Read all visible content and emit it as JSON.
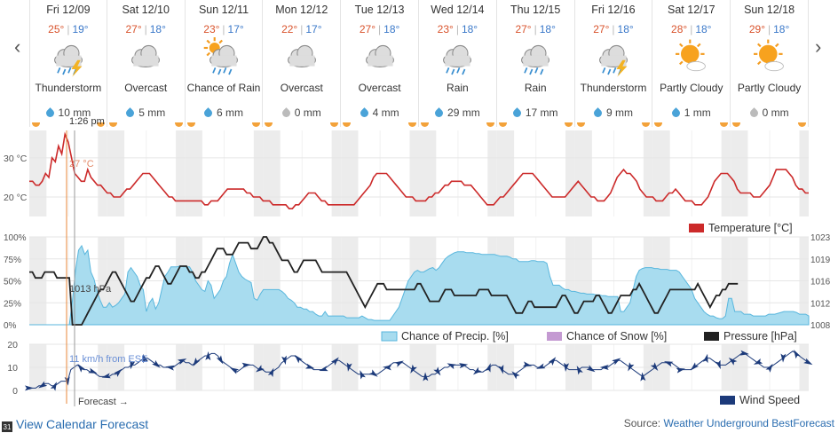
{
  "nav": {
    "prev": "‹",
    "next": "›"
  },
  "days": [
    {
      "name": "Fri 12/09",
      "hi": "25°",
      "lo": "19°",
      "condition": "Thunderstorm",
      "icon": "thunderstorm-icon",
      "precip": "10 mm",
      "drop": "blue"
    },
    {
      "name": "Sat 12/10",
      "hi": "27°",
      "lo": "18°",
      "condition": "Overcast",
      "icon": "overcast-icon",
      "precip": "5 mm",
      "drop": "blue"
    },
    {
      "name": "Sun 12/11",
      "hi": "23°",
      "lo": "17°",
      "condition": "Chance of Rain",
      "icon": "chance-of-rain-icon",
      "precip": "6 mm",
      "drop": "blue"
    },
    {
      "name": "Mon 12/12",
      "hi": "22°",
      "lo": "17°",
      "condition": "Overcast",
      "icon": "overcast-icon",
      "precip": "0 mm",
      "drop": "gray"
    },
    {
      "name": "Tue 12/13",
      "hi": "27°",
      "lo": "18°",
      "condition": "Overcast",
      "icon": "overcast-icon",
      "precip": "4 mm",
      "drop": "blue"
    },
    {
      "name": "Wed 12/14",
      "hi": "23°",
      "lo": "18°",
      "condition": "Rain",
      "icon": "rain-icon",
      "precip": "29 mm",
      "drop": "blue"
    },
    {
      "name": "Thu 12/15",
      "hi": "27°",
      "lo": "18°",
      "condition": "Rain",
      "icon": "rain-icon",
      "precip": "17 mm",
      "drop": "blue"
    },
    {
      "name": "Fri 12/16",
      "hi": "27°",
      "lo": "18°",
      "condition": "Thunderstorm",
      "icon": "thunderstorm-icon",
      "precip": "9 mm",
      "drop": "blue"
    },
    {
      "name": "Sat 12/17",
      "hi": "28°",
      "lo": "18°",
      "condition": "Partly Cloudy",
      "icon": "partly-cloudy-icon",
      "precip": "1 mm",
      "drop": "blue"
    },
    {
      "name": "Sun 12/18",
      "hi": "29°",
      "lo": "18°",
      "condition": "Partly Cloudy",
      "icon": "partly-cloudy-icon",
      "precip": "0 mm",
      "drop": "gray"
    }
  ],
  "colors": {
    "temperature": "#cc2a2a",
    "precip_fill": "#a8dcef",
    "precip_line": "#58b6dd",
    "snow": "#c49ad2",
    "pressure": "#222222",
    "wind": "#1c3a7a",
    "cursor": "#e8873a",
    "now": "#999999",
    "shade": "#ececec"
  },
  "cursor": {
    "time_label": "1:26 pm",
    "temp_label": "27 °C",
    "pressure_label": "1013 hPa",
    "wind_label": "11 km/h from ESE"
  },
  "forecast_label": "Forecast →",
  "chart_data": [
    {
      "type": "line",
      "yticks": [
        "30 °C",
        "20 °C"
      ],
      "ylim": [
        15,
        37
      ],
      "series": [
        {
          "name": "Temperature [°C]",
          "values": [
            24,
            24,
            23,
            23,
            24,
            26,
            25,
            30,
            29,
            33,
            31,
            36,
            34,
            30,
            26,
            25,
            24,
            24,
            27,
            25,
            24,
            23,
            23,
            22,
            21,
            21,
            20,
            20,
            20,
            21,
            22,
            22,
            23,
            24,
            25,
            26,
            26,
            26,
            25,
            24,
            23,
            22,
            21,
            20,
            20,
            19,
            19,
            19,
            19,
            19,
            19,
            19,
            19,
            19,
            18,
            18,
            19,
            19,
            19,
            20,
            21,
            22,
            22,
            22,
            22,
            22,
            22,
            21,
            21,
            20,
            20,
            20,
            19,
            19,
            19,
            18,
            18,
            18,
            18,
            18,
            17,
            17,
            18,
            18,
            19,
            20,
            21,
            21,
            21,
            20,
            19,
            19,
            18,
            18,
            18,
            18,
            18,
            18,
            18,
            18,
            18,
            19,
            20,
            21,
            22,
            23,
            25,
            26,
            26,
            26,
            26,
            25,
            24,
            23,
            22,
            21,
            20,
            20,
            20,
            19,
            19,
            19,
            19,
            20,
            20,
            21,
            21,
            22,
            23,
            23,
            24,
            24,
            24,
            24,
            23,
            23,
            23,
            22,
            21,
            20,
            19,
            18,
            18,
            18,
            19,
            20,
            20,
            21,
            22,
            23,
            24,
            25,
            26,
            26,
            26,
            26,
            25,
            24,
            23,
            22,
            21,
            20,
            20,
            20,
            20,
            20,
            21,
            22,
            23,
            24,
            23,
            22,
            21,
            20,
            20,
            19,
            19,
            19,
            20,
            21,
            23,
            25,
            26,
            27,
            26,
            26,
            25,
            24,
            22,
            21,
            20,
            20,
            20,
            19,
            19,
            19,
            20,
            21,
            21,
            22,
            21,
            20,
            19,
            19,
            19,
            18,
            18,
            18,
            19,
            20,
            22,
            24,
            25,
            26,
            26,
            26,
            25,
            24,
            22,
            21,
            21,
            21,
            21,
            20,
            20,
            20,
            21,
            22,
            23,
            25,
            27,
            27,
            27,
            27,
            26,
            25,
            23,
            22,
            22,
            21,
            21
          ]
        }
      ]
    },
    {
      "type": "area",
      "yticks_left": [
        "100%",
        "75%",
        "50%",
        "25%",
        "0%"
      ],
      "yticks_right": [
        "1023",
        "1019",
        "1016",
        "1012",
        "1008"
      ],
      "ylim_left": [
        0,
        100
      ],
      "ylim_right": [
        1008,
        1023
      ],
      "series": [
        {
          "name": "Chance of Precip. [%]",
          "values": [
            0,
            0,
            0,
            0,
            0,
            0,
            0,
            0,
            0,
            0,
            0,
            0,
            0,
            0,
            28,
            62,
            85,
            90,
            80,
            85,
            60,
            52,
            38,
            28,
            20,
            20,
            25,
            20,
            22,
            25,
            30,
            35,
            60,
            65,
            60,
            55,
            45,
            40,
            15,
            25,
            30,
            18,
            25,
            40,
            55,
            60,
            66,
            66,
            66,
            67,
            66,
            66,
            66,
            60,
            50,
            45,
            40,
            38,
            50,
            45,
            30,
            35,
            40,
            50,
            55,
            70,
            80,
            70,
            60,
            55,
            52,
            50,
            48,
            30,
            28,
            35,
            40,
            40,
            40,
            40,
            40,
            40,
            38,
            35,
            30,
            28,
            25,
            20,
            20,
            18,
            18,
            15,
            15,
            12,
            10,
            10,
            15,
            10,
            10,
            10,
            10,
            10,
            10,
            8,
            8,
            8,
            8,
            8,
            10,
            8,
            6,
            6,
            5,
            5,
            5,
            5,
            5,
            5,
            10,
            15,
            20,
            30,
            40,
            50,
            55,
            60,
            62,
            60,
            60,
            62,
            64,
            65,
            62,
            65,
            70,
            75,
            78,
            80,
            82,
            83,
            83,
            83,
            82,
            82,
            82,
            81,
            81,
            80,
            80,
            80,
            80,
            80,
            79,
            78,
            78,
            78,
            77,
            75,
            75,
            72,
            72,
            72,
            72,
            73,
            73,
            72,
            72,
            72,
            70,
            55,
            45,
            45,
            45,
            42,
            40,
            40,
            38,
            38,
            37,
            36,
            36,
            35,
            35,
            35,
            34,
            34,
            33,
            33,
            32,
            32,
            32,
            32,
            15,
            15,
            20,
            25,
            40,
            55,
            62,
            64,
            65,
            65,
            65,
            64,
            64,
            63,
            63,
            63,
            62,
            62,
            62,
            60,
            55,
            50,
            45,
            40,
            30,
            25,
            20,
            15,
            12,
            10,
            10,
            8,
            7,
            7,
            10,
            30,
            30,
            15,
            15,
            15,
            12,
            12,
            12,
            10,
            10,
            10,
            10,
            10,
            12,
            12,
            12,
            13,
            14,
            15,
            15,
            15,
            15,
            14,
            12,
            12,
            12,
            10
          ]
        },
        {
          "name": "Chance of Snow [%]",
          "values": []
        },
        {
          "name": "Pressure [hPa]",
          "values": [
            1017,
            1017,
            1016,
            1016,
            1016,
            1017,
            1017,
            1017,
            1017,
            1016,
            1016,
            1016,
            1016,
            1016,
            1008,
            1008,
            1008,
            1008,
            1009,
            1010,
            1011,
            1012,
            1013,
            1014,
            1014,
            1015,
            1016,
            1017,
            1017,
            1016,
            1015,
            1014,
            1013,
            1012,
            1012,
            1013,
            1014,
            1015,
            1016,
            1016,
            1017,
            1018,
            1018,
            1017,
            1016,
            1015,
            1015,
            1016,
            1017,
            1018,
            1018,
            1018,
            1017,
            1017,
            1016,
            1016,
            1017,
            1017,
            1018,
            1019,
            1020,
            1021,
            1021,
            1021,
            1020,
            1020,
            1020,
            1021,
            1022,
            1022,
            1022,
            1022,
            1021,
            1021,
            1021,
            1022,
            1023,
            1023,
            1022,
            1022,
            1021,
            1020,
            1019,
            1019,
            1019,
            1018,
            1017,
            1017,
            1018,
            1019,
            1019,
            1019,
            1019,
            1019,
            1018,
            1017,
            1017,
            1017,
            1017,
            1017,
            1017,
            1017,
            1017,
            1017,
            1016,
            1015,
            1014,
            1013,
            1012,
            1011,
            1012,
            1013,
            1014,
            1015,
            1015,
            1015,
            1014,
            1014,
            1014,
            1014,
            1014,
            1014,
            1014,
            1014,
            1014,
            1014,
            1015,
            1015,
            1014,
            1013,
            1012,
            1012,
            1012,
            1012,
            1013,
            1014,
            1014,
            1014,
            1013,
            1013,
            1013,
            1013,
            1013,
            1013,
            1013,
            1013,
            1014,
            1014,
            1014,
            1014,
            1013,
            1013,
            1013,
            1013,
            1013,
            1013,
            1012,
            1011,
            1010,
            1010,
            1010,
            1011,
            1012,
            1012,
            1011,
            1011,
            1011,
            1011,
            1011,
            1011,
            1011,
            1011,
            1012,
            1013,
            1013,
            1012,
            1011,
            1010,
            1010,
            1011,
            1012,
            1012,
            1012,
            1012,
            1013,
            1013,
            1012,
            1011,
            1010,
            1010,
            1011,
            1012,
            1013,
            1013,
            1013,
            1013,
            1014,
            1014,
            1015,
            1014,
            1013,
            1012,
            1011,
            1010,
            1010,
            1011,
            1012,
            1013,
            1014,
            1014,
            1014,
            1014,
            1014,
            1014,
            1014,
            1014,
            1014,
            1015,
            1014,
            1013,
            1012,
            1011,
            1012,
            1013,
            1013,
            1014,
            1014,
            1015,
            1015,
            1015,
            1015
          ]
        }
      ]
    },
    {
      "type": "line",
      "yticks": [
        "20",
        "10",
        "0"
      ],
      "ylim": [
        0,
        20
      ],
      "series": [
        {
          "name": "Wind Speed",
          "values": [
            1,
            1,
            1,
            2,
            2,
            3,
            3,
            2,
            2,
            3,
            4,
            4,
            4,
            9,
            10,
            11,
            10,
            9,
            9,
            8,
            8,
            7,
            6,
            6,
            6,
            6,
            7,
            7,
            8,
            9,
            10,
            10,
            11,
            11,
            12,
            13,
            14,
            14,
            13,
            12,
            11,
            11,
            10,
            10,
            10,
            10,
            11,
            12,
            13,
            12,
            12,
            11,
            12,
            13,
            14,
            15,
            15,
            16,
            16,
            15,
            13,
            12,
            11,
            10,
            9,
            8,
            9,
            10,
            11,
            11,
            11,
            10,
            9,
            9,
            8,
            8,
            8,
            9,
            10,
            12,
            13,
            14,
            15,
            15,
            14,
            13,
            12,
            11,
            10,
            9,
            9,
            9,
            9,
            10,
            11,
            12,
            13,
            13,
            12,
            11,
            10,
            9,
            8,
            7,
            7,
            7,
            7,
            7,
            7,
            7,
            8,
            9,
            10,
            11,
            12,
            12,
            12,
            12,
            11,
            10,
            9,
            8,
            7,
            6,
            6,
            6,
            7,
            7,
            8,
            9,
            10,
            10,
            11,
            11,
            11,
            11,
            11,
            10,
            9,
            9,
            8,
            8,
            8,
            9,
            10,
            11,
            11,
            10,
            9,
            8,
            7,
            7,
            7,
            8,
            9,
            10,
            11,
            11,
            11,
            10,
            10,
            10,
            11,
            12,
            13,
            13,
            12,
            11,
            10,
            9,
            9,
            9,
            9,
            10,
            10,
            10,
            9,
            9,
            9,
            9,
            10,
            10,
            11,
            12,
            13,
            13,
            12,
            11,
            10,
            9,
            8,
            7,
            6,
            7,
            8,
            9,
            10,
            11,
            12,
            12,
            12,
            12,
            11,
            10,
            9,
            9,
            9,
            9,
            10,
            11,
            12,
            13,
            14,
            14,
            13,
            12,
            11,
            11,
            11,
            12,
            13,
            14,
            15,
            16,
            16,
            15,
            14,
            13,
            12,
            11,
            10,
            10,
            10,
            11,
            12,
            13,
            14,
            15,
            16,
            17,
            16,
            15,
            14,
            13,
            12
          ]
        }
      ]
    }
  ],
  "legend": {
    "temperature": "Temperature [°C]",
    "precip": "Chance of Precip. [%]",
    "snow": "Chance of Snow [%]",
    "pressure": "Pressure [hPa]",
    "wind": "Wind Speed"
  },
  "footer": {
    "calendar_icon_text": "31",
    "calendar_link": "View Calendar Forecast",
    "source_prefix": "Source: ",
    "source_link": "Weather Underground BestForecast"
  }
}
